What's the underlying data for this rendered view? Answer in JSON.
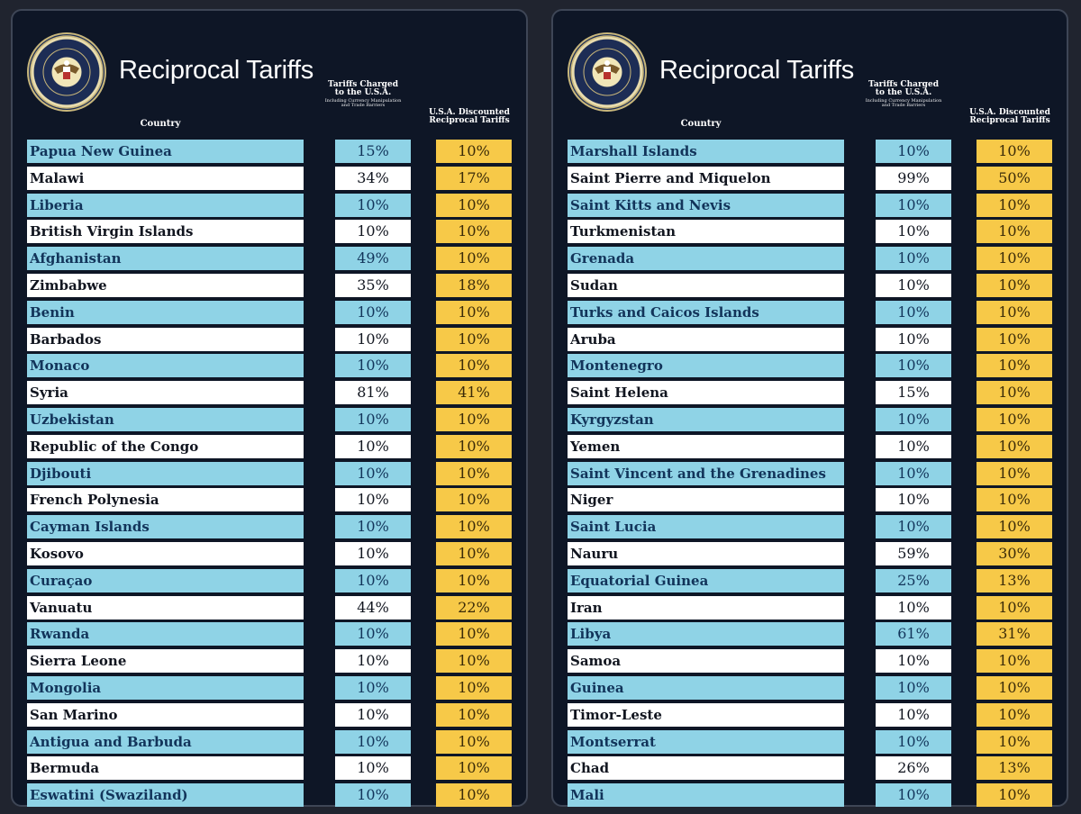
{
  "colors": {
    "background": "#0e1626",
    "row_blue": "#8fd3e6",
    "row_white": "#ffffff",
    "discount": "#f7c948"
  },
  "icons": {
    "seal": "presidential-seal-icon"
  },
  "panels": [
    {
      "title": "Reciprocal Tariffs",
      "header_country": "Country",
      "header_charged": "Tariffs Charged to the U.S.A.",
      "header_charged_note": "Including Currency Manipulation and Trade Barriers",
      "header_discount": "U.S.A. Discounted Reciprocal Tariffs",
      "rows": [
        {
          "country": "Papua New Guinea",
          "charged": "15%",
          "discounted": "10%"
        },
        {
          "country": "Malawi",
          "charged": "34%",
          "discounted": "17%"
        },
        {
          "country": "Liberia",
          "charged": "10%",
          "discounted": "10%"
        },
        {
          "country": "British Virgin Islands",
          "charged": "10%",
          "discounted": "10%"
        },
        {
          "country": "Afghanistan",
          "charged": "49%",
          "discounted": "10%"
        },
        {
          "country": "Zimbabwe",
          "charged": "35%",
          "discounted": "18%"
        },
        {
          "country": "Benin",
          "charged": "10%",
          "discounted": "10%"
        },
        {
          "country": "Barbados",
          "charged": "10%",
          "discounted": "10%"
        },
        {
          "country": "Monaco",
          "charged": "10%",
          "discounted": "10%"
        },
        {
          "country": "Syria",
          "charged": "81%",
          "discounted": "41%"
        },
        {
          "country": "Uzbekistan",
          "charged": "10%",
          "discounted": "10%"
        },
        {
          "country": "Republic of the Congo",
          "charged": "10%",
          "discounted": "10%"
        },
        {
          "country": "Djibouti",
          "charged": "10%",
          "discounted": "10%"
        },
        {
          "country": "French Polynesia",
          "charged": "10%",
          "discounted": "10%"
        },
        {
          "country": "Cayman Islands",
          "charged": "10%",
          "discounted": "10%"
        },
        {
          "country": "Kosovo",
          "charged": "10%",
          "discounted": "10%"
        },
        {
          "country": "Curaçao",
          "charged": "10%",
          "discounted": "10%"
        },
        {
          "country": "Vanuatu",
          "charged": "44%",
          "discounted": "22%"
        },
        {
          "country": "Rwanda",
          "charged": "10%",
          "discounted": "10%"
        },
        {
          "country": "Sierra Leone",
          "charged": "10%",
          "discounted": "10%"
        },
        {
          "country": "Mongolia",
          "charged": "10%",
          "discounted": "10%"
        },
        {
          "country": "San Marino",
          "charged": "10%",
          "discounted": "10%"
        },
        {
          "country": "Antigua and Barbuda",
          "charged": "10%",
          "discounted": "10%"
        },
        {
          "country": "Bermuda",
          "charged": "10%",
          "discounted": "10%"
        },
        {
          "country": "Eswatini (Swaziland)",
          "charged": "10%",
          "discounted": "10%"
        }
      ]
    },
    {
      "title": "Reciprocal Tariffs",
      "header_country": "Country",
      "header_charged": "Tariffs Charged to the U.S.A.",
      "header_charged_note": "Including Currency Manipulation and Trade Barriers",
      "header_discount": "U.S.A. Discounted Reciprocal Tariffs",
      "rows": [
        {
          "country": "Marshall Islands",
          "charged": "10%",
          "discounted": "10%"
        },
        {
          "country": "Saint Pierre and Miquelon",
          "charged": "99%",
          "discounted": "50%"
        },
        {
          "country": "Saint Kitts and Nevis",
          "charged": "10%",
          "discounted": "10%"
        },
        {
          "country": "Turkmenistan",
          "charged": "10%",
          "discounted": "10%"
        },
        {
          "country": "Grenada",
          "charged": "10%",
          "discounted": "10%"
        },
        {
          "country": "Sudan",
          "charged": "10%",
          "discounted": "10%"
        },
        {
          "country": "Turks and Caicos Islands",
          "charged": "10%",
          "discounted": "10%"
        },
        {
          "country": "Aruba",
          "charged": "10%",
          "discounted": "10%"
        },
        {
          "country": "Montenegro",
          "charged": "10%",
          "discounted": "10%"
        },
        {
          "country": "Saint Helena",
          "charged": "15%",
          "discounted": "10%"
        },
        {
          "country": "Kyrgyzstan",
          "charged": "10%",
          "discounted": "10%"
        },
        {
          "country": "Yemen",
          "charged": "10%",
          "discounted": "10%"
        },
        {
          "country": "Saint Vincent and the Grenadines",
          "charged": "10%",
          "discounted": "10%"
        },
        {
          "country": "Niger",
          "charged": "10%",
          "discounted": "10%"
        },
        {
          "country": "Saint Lucia",
          "charged": "10%",
          "discounted": "10%"
        },
        {
          "country": "Nauru",
          "charged": "59%",
          "discounted": "30%"
        },
        {
          "country": "Equatorial Guinea",
          "charged": "25%",
          "discounted": "13%"
        },
        {
          "country": "Iran",
          "charged": "10%",
          "discounted": "10%"
        },
        {
          "country": "Libya",
          "charged": "61%",
          "discounted": "31%"
        },
        {
          "country": "Samoa",
          "charged": "10%",
          "discounted": "10%"
        },
        {
          "country": "Guinea",
          "charged": "10%",
          "discounted": "10%"
        },
        {
          "country": "Timor-Leste",
          "charged": "10%",
          "discounted": "10%"
        },
        {
          "country": "Montserrat",
          "charged": "10%",
          "discounted": "10%"
        },
        {
          "country": "Chad",
          "charged": "26%",
          "discounted": "13%"
        },
        {
          "country": "Mali",
          "charged": "10%",
          "discounted": "10%"
        }
      ]
    }
  ]
}
